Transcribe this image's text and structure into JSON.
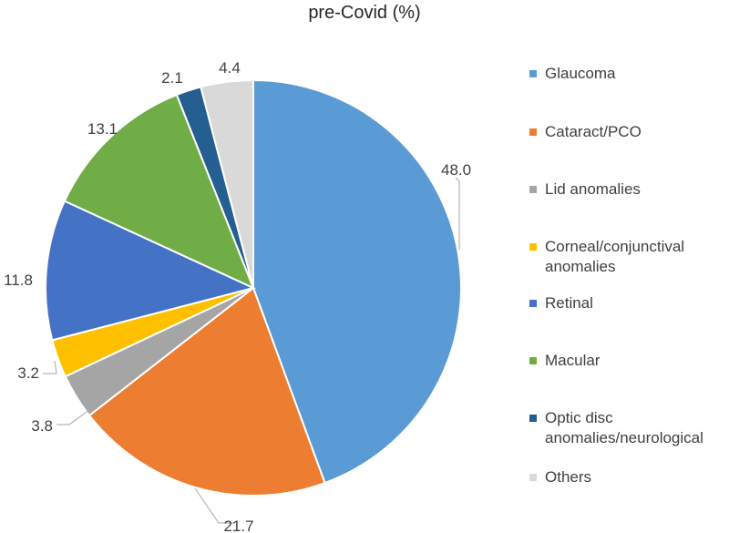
{
  "chart_data": {
    "type": "pie",
    "title": "pre-Covid (%)",
    "slices": [
      {
        "label": "Glaucoma",
        "value": 48.0,
        "display": "48.0",
        "color": "#5B9BD5"
      },
      {
        "label": "Cataract/PCO",
        "value": 21.7,
        "display": "21.7",
        "color": "#ED7D31"
      },
      {
        "label": "Lid anomalies",
        "value": 3.8,
        "display": "3.8",
        "color": "#A5A5A5"
      },
      {
        "label": "Corneal/conjunctival anomalies",
        "value": 3.2,
        "display": "3.2",
        "color": "#FFC000"
      },
      {
        "label": "Retinal",
        "value": 11.8,
        "display": "11.8",
        "color": "#4472C4"
      },
      {
        "label": "Macular",
        "value": 13.1,
        "display": "13.1",
        "color": "#70AD47"
      },
      {
        "label": "Optic disc anomalies/neurological",
        "value": 2.1,
        "display": "2.1",
        "color": "#255E91"
      },
      {
        "label": "Others",
        "value": 4.4,
        "display": "4.4",
        "color": "#D9D9D9"
      }
    ],
    "start_angle": "12 o'clock",
    "direction": "clockwise",
    "legend_position": "right"
  }
}
